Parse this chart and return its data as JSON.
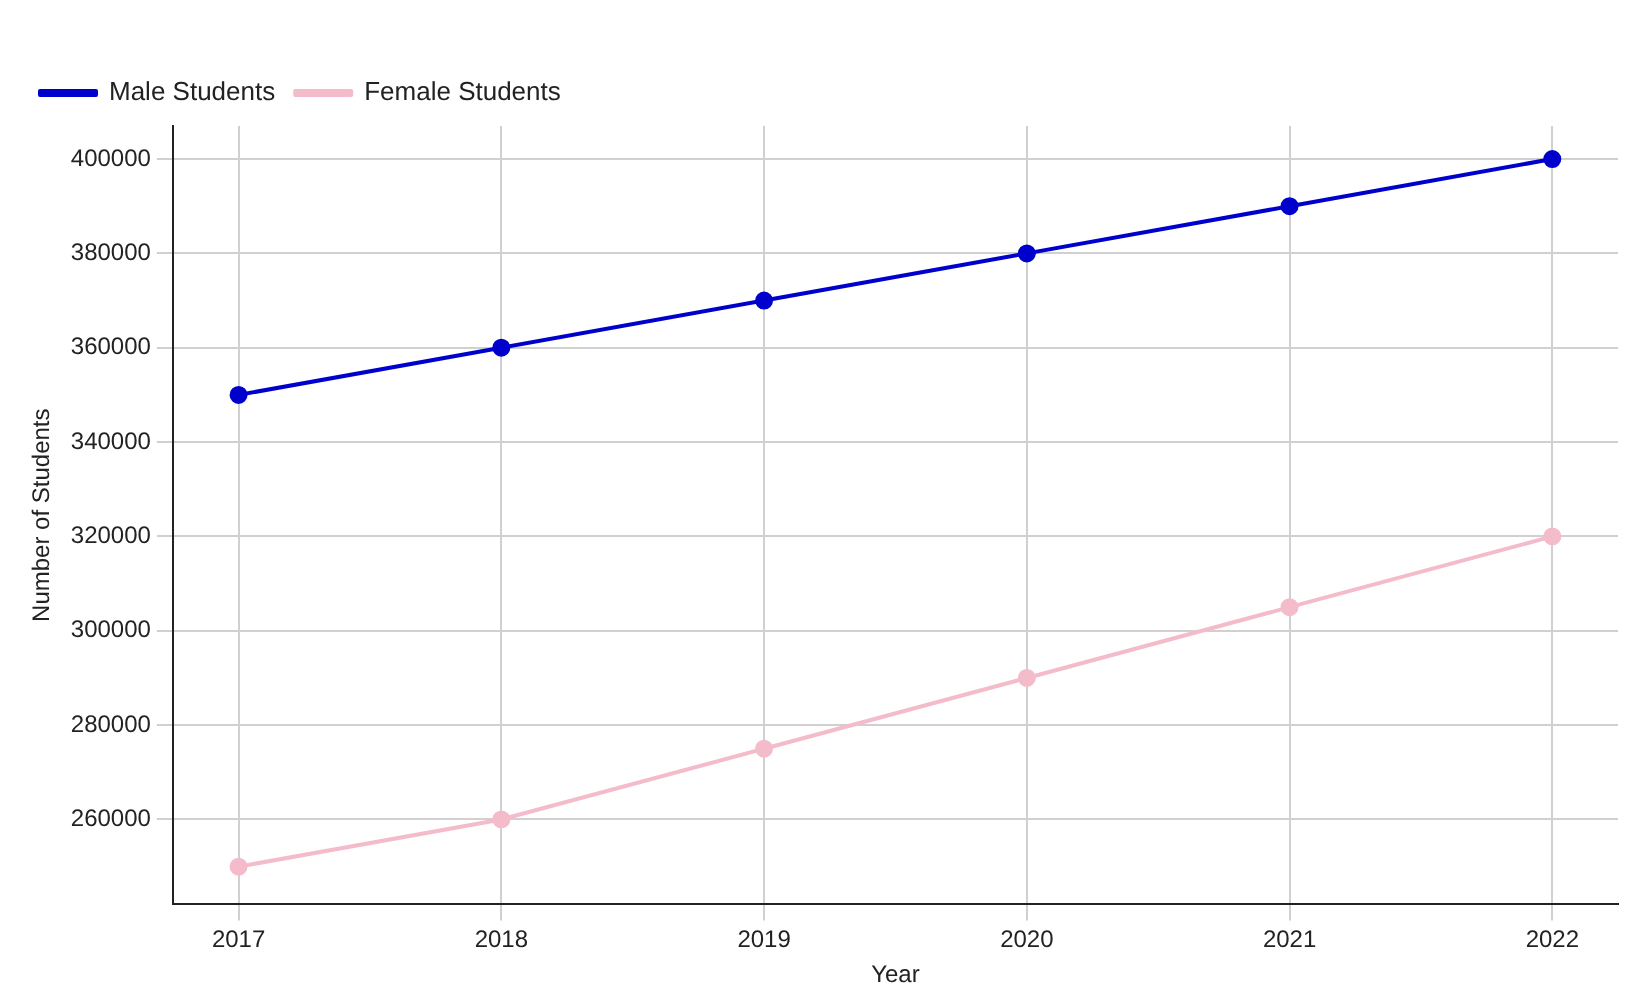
{
  "chart_data": {
    "type": "line",
    "xlabel": "Year",
    "ylabel": "Number of Students",
    "x": [
      2017,
      2018,
      2019,
      2020,
      2021,
      2022
    ],
    "series": [
      {
        "name": "Male Students",
        "color": "#0000cd",
        "values": [
          350000,
          360000,
          370000,
          380000,
          390000,
          400000
        ]
      },
      {
        "name": "Female Students",
        "color": "#f4bccb",
        "values": [
          250000,
          260000,
          275000,
          290000,
          305000,
          320000
        ]
      }
    ],
    "xlim": [
      2016.75,
      2022.25
    ],
    "xticks": [
      2017,
      2018,
      2019,
      2020,
      2021,
      2022
    ],
    "ylim": [
      242000,
      407000
    ],
    "yticks": [
      260000,
      280000,
      300000,
      320000,
      340000,
      360000,
      380000,
      400000
    ],
    "grid": true,
    "legend": "top left",
    "marker": "circle",
    "line_style": "solid"
  }
}
